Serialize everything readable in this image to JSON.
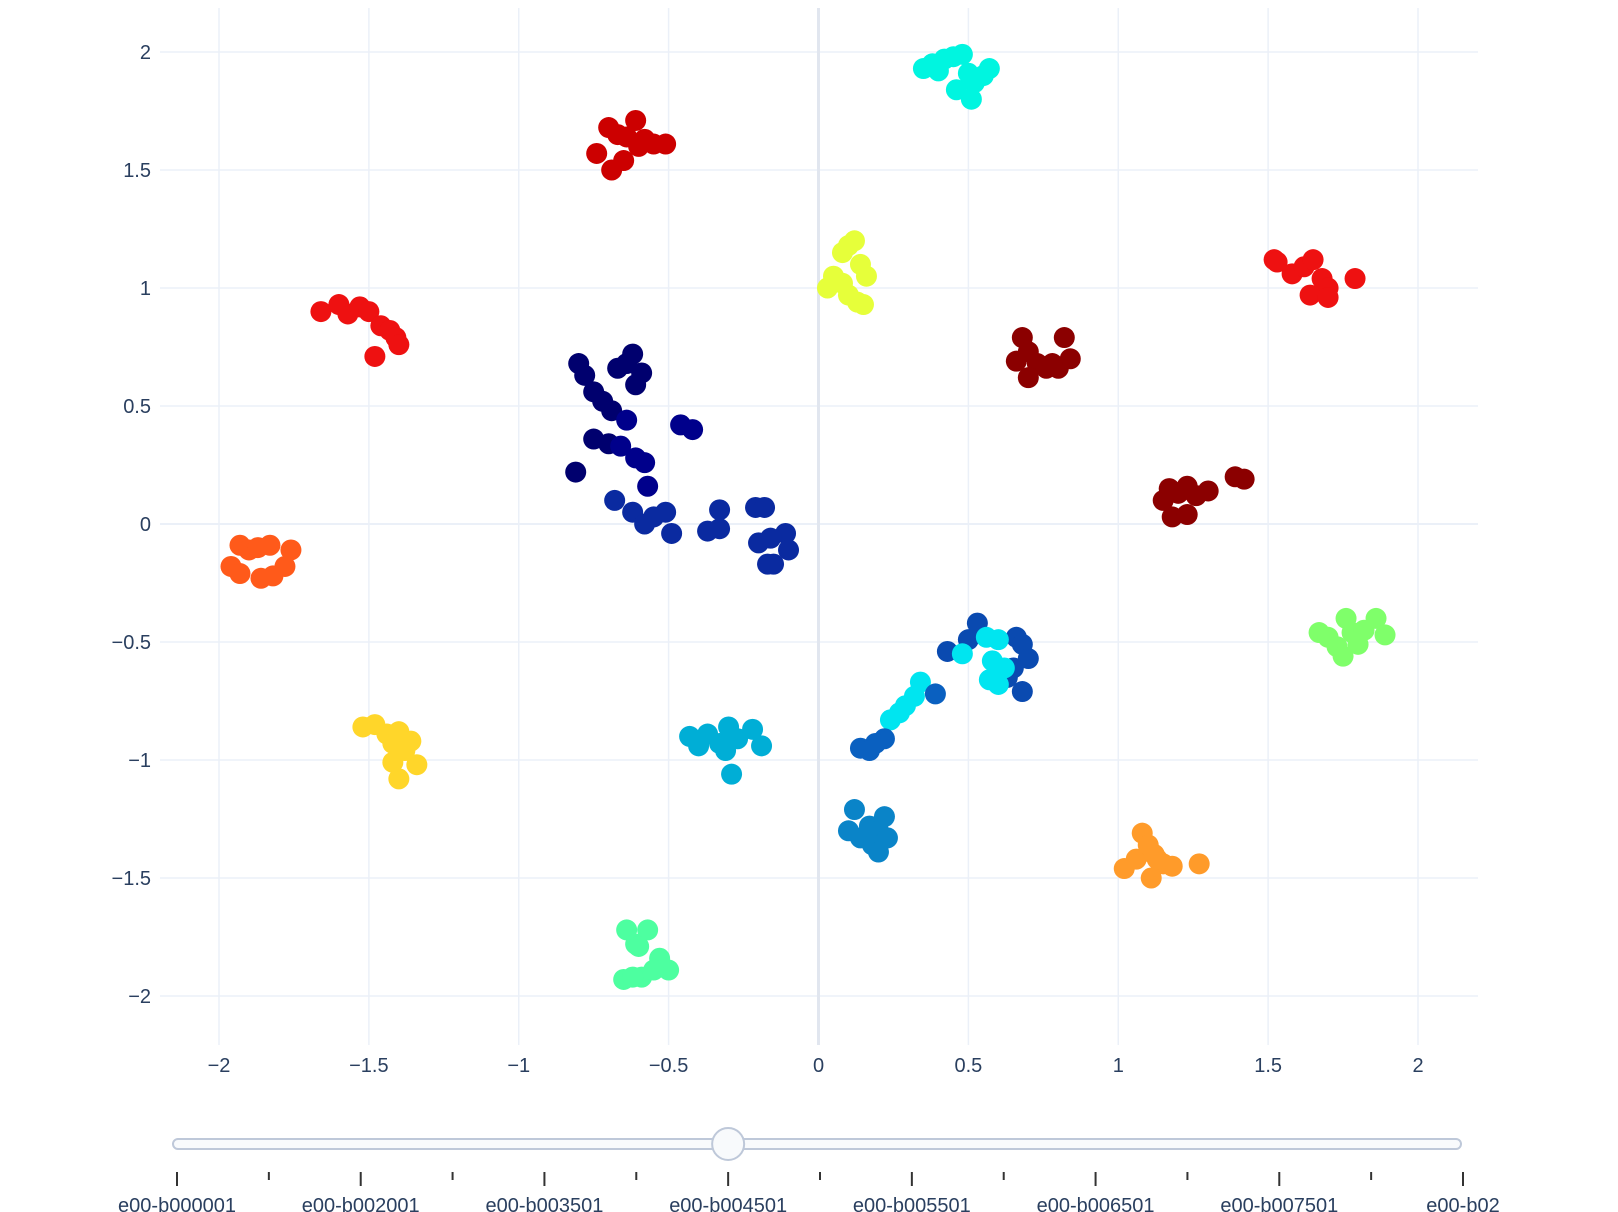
{
  "chart_data": {
    "type": "scatter",
    "title": "",
    "xlabel": "",
    "ylabel": "",
    "xlim": [
      -2.2,
      2.2
    ],
    "ylim": [
      -2.2,
      2.2
    ],
    "grid": true,
    "legend": "none",
    "x_ticks": [
      "−2",
      "−1.5",
      "−1",
      "−0.5",
      "0",
      "0.5",
      "1",
      "1.5",
      "2"
    ],
    "x_tick_values": [
      -2,
      -1.5,
      -1,
      -0.5,
      0,
      0.5,
      1,
      1.5,
      2
    ],
    "y_ticks": [
      "2",
      "1.5",
      "1",
      "0.5",
      "0",
      "−0.5",
      "−1",
      "−1.5",
      "−2"
    ],
    "y_tick_values": [
      2,
      1.5,
      1,
      0.5,
      0,
      -0.5,
      -1,
      -1.5,
      -2
    ],
    "series": [
      {
        "color": "#00f5e0",
        "x": [
          0.35,
          0.38,
          0.42,
          0.45,
          0.48,
          0.5,
          0.52,
          0.55,
          0.57,
          0.46,
          0.51,
          0.4
        ],
        "y": [
          1.93,
          1.95,
          1.97,
          1.98,
          1.99,
          1.91,
          1.87,
          1.9,
          1.93,
          1.84,
          1.8,
          1.92
        ]
      },
      {
        "color": "#cc0000",
        "x": [
          -0.7,
          -0.67,
          -0.64,
          -0.61,
          -0.58,
          -0.55,
          -0.51,
          -0.74,
          -0.69,
          -0.65,
          -0.6
        ],
        "y": [
          1.68,
          1.65,
          1.64,
          1.71,
          1.63,
          1.61,
          1.61,
          1.57,
          1.5,
          1.54,
          1.6
        ]
      },
      {
        "color": "#e6ff3a",
        "x": [
          0.08,
          0.1,
          0.12,
          0.14,
          0.16,
          0.05,
          0.03,
          0.1,
          0.13,
          0.08,
          0.15
        ],
        "y": [
          1.15,
          1.18,
          1.2,
          1.1,
          1.05,
          1.05,
          1.0,
          0.97,
          0.94,
          1.02,
          0.93
        ]
      },
      {
        "color": "#ee1111",
        "x": [
          1.52,
          1.53,
          1.58,
          1.62,
          1.65,
          1.68,
          1.7,
          1.64,
          1.7,
          1.79
        ],
        "y": [
          1.12,
          1.11,
          1.06,
          1.09,
          1.12,
          1.04,
          1.0,
          0.97,
          0.96,
          1.04
        ]
      },
      {
        "color": "#ee1111",
        "x": [
          -1.66,
          -1.6,
          -1.57,
          -1.53,
          -1.5,
          -1.46,
          -1.43,
          -1.41,
          -1.4,
          -1.48
        ],
        "y": [
          0.9,
          0.93,
          0.89,
          0.92,
          0.9,
          0.84,
          0.82,
          0.79,
          0.76,
          0.71
        ]
      },
      {
        "color": "#8b0000",
        "x": [
          0.68,
          0.66,
          0.7,
          0.73,
          0.76,
          0.8,
          0.82,
          0.84,
          0.7,
          0.78
        ],
        "y": [
          0.79,
          0.69,
          0.73,
          0.68,
          0.66,
          0.66,
          0.79,
          0.7,
          0.62,
          0.68
        ]
      },
      {
        "color": "#8b0000",
        "x": [
          1.17,
          1.2,
          1.23,
          1.26,
          1.3,
          1.39,
          1.42,
          1.18,
          1.23,
          1.15
        ],
        "y": [
          0.15,
          0.13,
          0.16,
          0.12,
          0.14,
          0.2,
          0.19,
          0.03,
          0.04,
          0.1
        ]
      },
      {
        "color": "#00006e",
        "x": [
          -0.8,
          -0.78,
          -0.75,
          -0.72,
          -0.69,
          -0.64,
          -0.62,
          -0.59,
          -0.61,
          -0.67,
          -0.75,
          -0.81,
          -0.7
        ],
        "y": [
          0.68,
          0.63,
          0.56,
          0.52,
          0.48,
          0.68,
          0.72,
          0.64,
          0.59,
          0.66,
          0.36,
          0.22,
          0.34
        ]
      },
      {
        "color": "#00008b",
        "x": [
          -0.64,
          -0.61,
          -0.58,
          -0.57,
          -0.46,
          -0.42,
          -0.66
        ],
        "y": [
          0.44,
          0.28,
          0.26,
          0.16,
          0.42,
          0.4,
          0.33
        ]
      },
      {
        "color": "#0a2aa0",
        "x": [
          -0.68,
          -0.62,
          -0.58,
          -0.55,
          -0.51,
          -0.49,
          -0.37,
          -0.33,
          -0.33,
          -0.21,
          -0.18,
          -0.2,
          -0.16,
          -0.11,
          -0.1,
          -0.17,
          -0.15
        ],
        "y": [
          0.1,
          0.05,
          0.0,
          0.03,
          0.05,
          -0.04,
          -0.03,
          -0.02,
          0.06,
          0.07,
          0.07,
          -0.08,
          -0.06,
          -0.04,
          -0.11,
          -0.17,
          -0.17
        ]
      },
      {
        "color": "#ff5a1a",
        "x": [
          -1.96,
          -1.93,
          -1.9,
          -1.87,
          -1.83,
          -1.76,
          -1.78,
          -1.86,
          -1.93,
          -1.82
        ],
        "y": [
          -0.18,
          -0.09,
          -0.11,
          -0.1,
          -0.09,
          -0.11,
          -0.18,
          -0.23,
          -0.21,
          -0.22
        ]
      },
      {
        "color": "#7fff6a",
        "x": [
          1.67,
          1.7,
          1.73,
          1.76,
          1.78,
          1.82,
          1.86,
          1.89,
          1.8,
          1.75
        ],
        "y": [
          -0.46,
          -0.48,
          -0.52,
          -0.4,
          -0.46,
          -0.45,
          -0.4,
          -0.47,
          -0.51,
          -0.56
        ]
      },
      {
        "color": "#0a4ab0",
        "x": [
          0.43,
          0.5,
          0.53,
          0.6,
          0.66,
          0.68,
          0.7,
          0.65,
          0.68,
          0.63
        ],
        "y": [
          -0.54,
          -0.49,
          -0.42,
          -0.63,
          -0.48,
          -0.51,
          -0.57,
          -0.61,
          -0.71,
          -0.65
        ]
      },
      {
        "color": "#00e5f0",
        "x": [
          0.56,
          0.58,
          0.6,
          0.62,
          0.57,
          0.6,
          0.48,
          0.34,
          0.32,
          0.29,
          0.27,
          0.24
        ],
        "y": [
          -0.48,
          -0.58,
          -0.49,
          -0.61,
          -0.66,
          -0.68,
          -0.55,
          -0.67,
          -0.73,
          -0.77,
          -0.8,
          -0.83
        ]
      },
      {
        "color": "#0a60c0",
        "x": [
          0.39,
          0.22,
          0.19,
          0.14,
          0.17
        ],
        "y": [
          -0.72,
          -0.91,
          -0.93,
          -0.95,
          -0.96
        ]
      },
      {
        "color": "#ffd62a",
        "x": [
          -1.52,
          -1.48,
          -1.44,
          -1.42,
          -1.4,
          -1.38,
          -1.36,
          -1.34,
          -1.4,
          -1.42
        ],
        "y": [
          -0.86,
          -0.85,
          -0.89,
          -0.93,
          -0.88,
          -0.96,
          -0.92,
          -1.02,
          -1.08,
          -1.01
        ]
      },
      {
        "color": "#00aed6",
        "x": [
          -0.43,
          -0.4,
          -0.37,
          -0.33,
          -0.3,
          -0.27,
          -0.22,
          -0.19,
          -0.29,
          -0.31
        ],
        "y": [
          -0.9,
          -0.94,
          -0.89,
          -0.93,
          -0.86,
          -0.91,
          -0.87,
          -0.94,
          -1.06,
          -0.96
        ]
      },
      {
        "color": "#0a84c8",
        "x": [
          0.12,
          0.1,
          0.14,
          0.17,
          0.2,
          0.22,
          0.23,
          0.18,
          0.2
        ],
        "y": [
          -1.21,
          -1.3,
          -1.33,
          -1.28,
          -1.3,
          -1.24,
          -1.33,
          -1.36,
          -1.39
        ]
      },
      {
        "color": "#ff9b2a",
        "x": [
          1.02,
          1.06,
          1.08,
          1.1,
          1.12,
          1.15,
          1.18,
          1.27,
          1.11,
          1.13
        ],
        "y": [
          -1.46,
          -1.42,
          -1.31,
          -1.36,
          -1.4,
          -1.44,
          -1.45,
          -1.44,
          -1.5,
          -1.42
        ]
      },
      {
        "color": "#4dffa0",
        "x": [
          -0.64,
          -0.61,
          -0.57,
          -0.6,
          -0.5,
          -0.53,
          -0.65,
          -0.59,
          -0.62,
          -0.55
        ],
        "y": [
          -1.72,
          -1.78,
          -1.72,
          -1.79,
          -1.89,
          -1.84,
          -1.93,
          -1.92,
          -1.92,
          -1.89
        ]
      }
    ]
  },
  "slider": {
    "active_index": 3,
    "labels": [
      "e00-b000001",
      "e00-b002001",
      "e00-b003501",
      "e00-b004501",
      "e00-b005501",
      "e00-b006501",
      "e00-b007501",
      "e00-b02"
    ]
  }
}
